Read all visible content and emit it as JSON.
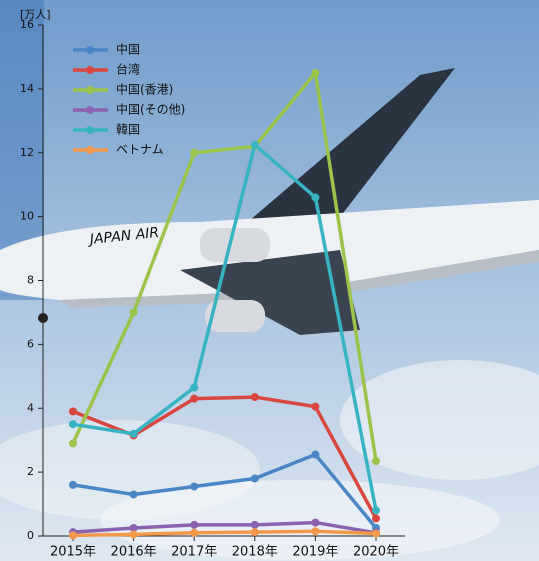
{
  "chart_data": {
    "type": "line",
    "y_unit": "[万人]",
    "categories": [
      "2015年",
      "2016年",
      "2017年",
      "2018年",
      "2019年",
      "2020年"
    ],
    "ylim": [
      0,
      16
    ],
    "yticks": [
      0,
      2,
      4,
      6,
      8,
      10,
      12,
      14,
      16
    ],
    "legend": "top-left",
    "series": [
      {
        "name": "中国",
        "color": "#4a86c5",
        "values": [
          1.6,
          1.3,
          1.55,
          1.8,
          2.55,
          0.25
        ]
      },
      {
        "name": "台湾",
        "color": "#d9463e",
        "values": [
          3.9,
          3.15,
          4.3,
          4.35,
          4.05,
          0.55
        ]
      },
      {
        "name": "中国(香港)",
        "color": "#9cc34a",
        "values": [
          2.9,
          7.0,
          12.0,
          12.2,
          14.5,
          2.35
        ]
      },
      {
        "name": "中国(その他)",
        "color": "#8b62b0",
        "values": [
          0.12,
          0.25,
          0.35,
          0.35,
          0.42,
          0.1
        ]
      },
      {
        "name": "韓国",
        "color": "#38b3c2",
        "values": [
          3.5,
          3.2,
          4.65,
          12.25,
          10.6,
          0.8
        ]
      },
      {
        "name": "ベトナム",
        "color": "#f2994a",
        "values": [
          0.02,
          0.05,
          0.1,
          0.12,
          0.15,
          0.08
        ]
      }
    ]
  }
}
